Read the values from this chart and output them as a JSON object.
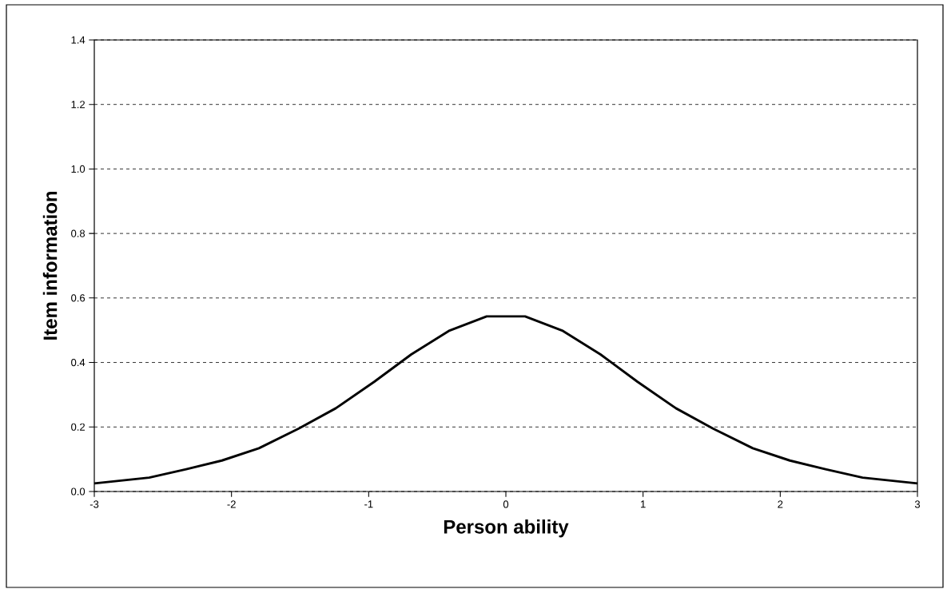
{
  "chart_data": {
    "type": "line",
    "xlabel": "Person ability",
    "ylabel": "Item information",
    "x": [
      -3,
      -2.6,
      -2.33,
      -2.07,
      -1.8,
      -1.51,
      -1.24,
      -0.96,
      -0.69,
      -0.41,
      -0.14,
      0.14,
      0.41,
      0.69,
      0.96,
      1.24,
      1.51,
      1.8,
      2.07,
      2.33,
      2.6,
      3
    ],
    "values": [
      0.025,
      0.043,
      0.069,
      0.096,
      0.134,
      0.195,
      0.258,
      0.34,
      0.425,
      0.499,
      0.543,
      0.543,
      0.499,
      0.425,
      0.34,
      0.258,
      0.195,
      0.134,
      0.096,
      0.069,
      0.043,
      0.025
    ],
    "color": "#000000",
    "line_style": "solid",
    "xlim": [
      -3,
      3
    ],
    "ylim": [
      0,
      1.4
    ],
    "xticks": [
      -3,
      -2,
      -1,
      0,
      1,
      2,
      3
    ],
    "yticks": [
      {
        "value": 0,
        "label": "0.0"
      },
      {
        "value": 0.2,
        "label": "0.2"
      },
      {
        "value": 0.4,
        "label": "0.4"
      },
      {
        "value": 0.6,
        "label": "0.6"
      },
      {
        "value": 0.8,
        "label": "0.8"
      },
      {
        "value": 1.0,
        "label": "1.0"
      },
      {
        "value": 1.2,
        "label": "1.2"
      },
      {
        "value": 1.4,
        "label": "1.4"
      }
    ],
    "grid": "y"
  }
}
